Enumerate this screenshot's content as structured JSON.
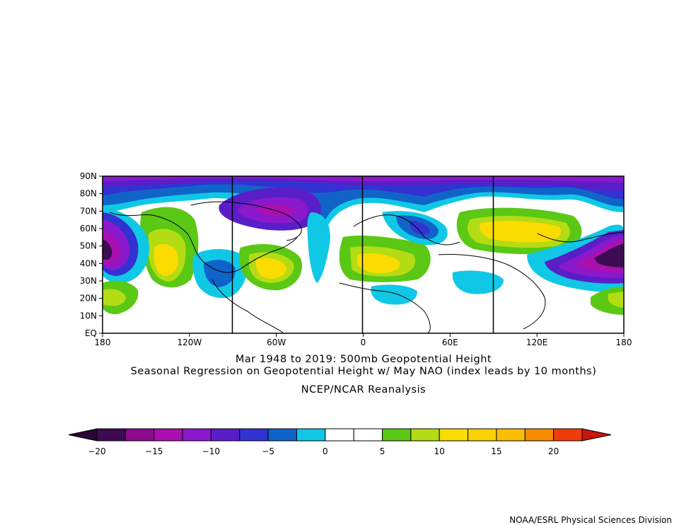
{
  "titles": {
    "line1": "Mar 1948 to 2019: 500mb Geopotential Height",
    "line2": "Seasonal Regression on Geopotential Height  w/ May NAO (index leads by 10 months)",
    "line3": "NCEP/NCAR Reanalysis"
  },
  "credit": "NOAA/ESRL Physical Sciences Division",
  "map": {
    "lat_labels": [
      "EQ",
      "10N",
      "20N",
      "30N",
      "40N",
      "50N",
      "60N",
      "70N",
      "80N",
      "90N"
    ],
    "lon_labels": [
      "180",
      "120W",
      "60W",
      "0",
      "60E",
      "120E",
      "180"
    ]
  },
  "colorbar": {
    "tick_labels": [
      "−20",
      "−15",
      "−10",
      "−5",
      "0",
      "5",
      "10",
      "15",
      "20"
    ],
    "colors": [
      "#3c0b52",
      "#8b0a8d",
      "#aa10b0",
      "#8a18cc",
      "#5a1ec8",
      "#3232d2",
      "#1064c8",
      "#10c8e6",
      "#ffffff",
      "#ffffff",
      "#5ac814",
      "#b4dc14",
      "#fadc00",
      "#fad200",
      "#fabe00",
      "#f58c00",
      "#f03c0a"
    ],
    "left_arrow_color": "#2a0535",
    "right_arrow_color": "#c8140a"
  }
}
